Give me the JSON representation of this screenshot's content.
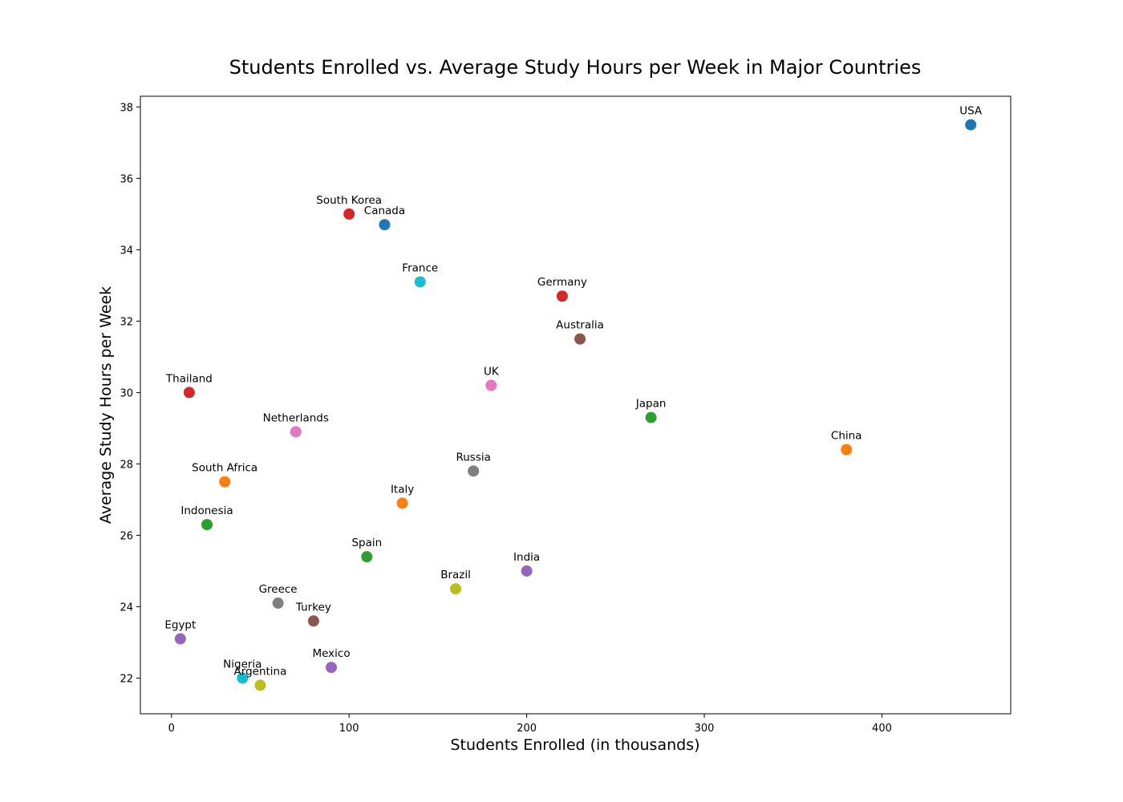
{
  "chart_data": {
    "type": "scatter",
    "title": "Students Enrolled vs. Average Study Hours per Week in Major Countries",
    "xlabel": "Students Enrolled (in thousands)",
    "ylabel": "Average Study Hours per Week",
    "xlim": [
      -17.5,
      472.5
    ],
    "ylim": [
      21.0,
      38.3
    ],
    "xticks": [
      0,
      100,
      200,
      300,
      400
    ],
    "yticks": [
      22,
      24,
      26,
      28,
      30,
      32,
      34,
      36,
      38
    ],
    "grid": false,
    "legend": "none",
    "points": [
      {
        "label": "USA",
        "x": 450,
        "y": 37.5,
        "color": "#1f77b4"
      },
      {
        "label": "China",
        "x": 380,
        "y": 28.4,
        "color": "#ff7f0e"
      },
      {
        "label": "Japan",
        "x": 270,
        "y": 29.3,
        "color": "#2ca02c"
      },
      {
        "label": "Germany",
        "x": 220,
        "y": 32.7,
        "color": "#d62728"
      },
      {
        "label": "India",
        "x": 200,
        "y": 25.0,
        "color": "#9467bd"
      },
      {
        "label": "Australia",
        "x": 230,
        "y": 31.5,
        "color": "#8c564b"
      },
      {
        "label": "UK",
        "x": 180,
        "y": 30.2,
        "color": "#e377c2"
      },
      {
        "label": "Russia",
        "x": 170,
        "y": 27.8,
        "color": "#7f7f7f"
      },
      {
        "label": "Brazil",
        "x": 160,
        "y": 24.5,
        "color": "#bcbd22"
      },
      {
        "label": "France",
        "x": 140,
        "y": 33.1,
        "color": "#17becf"
      },
      {
        "label": "Canada",
        "x": 120,
        "y": 34.7,
        "color": "#1f77b4"
      },
      {
        "label": "Italy",
        "x": 130,
        "y": 26.9,
        "color": "#ff7f0e"
      },
      {
        "label": "Spain",
        "x": 110,
        "y": 25.4,
        "color": "#2ca02c"
      },
      {
        "label": "South Korea",
        "x": 100,
        "y": 35.0,
        "color": "#d62728"
      },
      {
        "label": "Mexico",
        "x": 90,
        "y": 22.3,
        "color": "#9467bd"
      },
      {
        "label": "Turkey",
        "x": 80,
        "y": 23.6,
        "color": "#8c564b"
      },
      {
        "label": "Netherlands",
        "x": 70,
        "y": 28.9,
        "color": "#e377c2"
      },
      {
        "label": "Greece",
        "x": 60,
        "y": 24.1,
        "color": "#7f7f7f"
      },
      {
        "label": "Argentina",
        "x": 50,
        "y": 21.8,
        "color": "#bcbd22"
      },
      {
        "label": "Nigeria",
        "x": 40,
        "y": 22.0,
        "color": "#17becf"
      },
      {
        "label": "South Africa",
        "x": 30,
        "y": 27.5,
        "color": "#ff7f0e"
      },
      {
        "label": "Indonesia",
        "x": 20,
        "y": 26.3,
        "color": "#2ca02c"
      },
      {
        "label": "Thailand",
        "x": 10,
        "y": 30.0,
        "color": "#d62728"
      },
      {
        "label": "Egypt",
        "x": 5,
        "y": 23.1,
        "color": "#9467bd"
      }
    ]
  }
}
